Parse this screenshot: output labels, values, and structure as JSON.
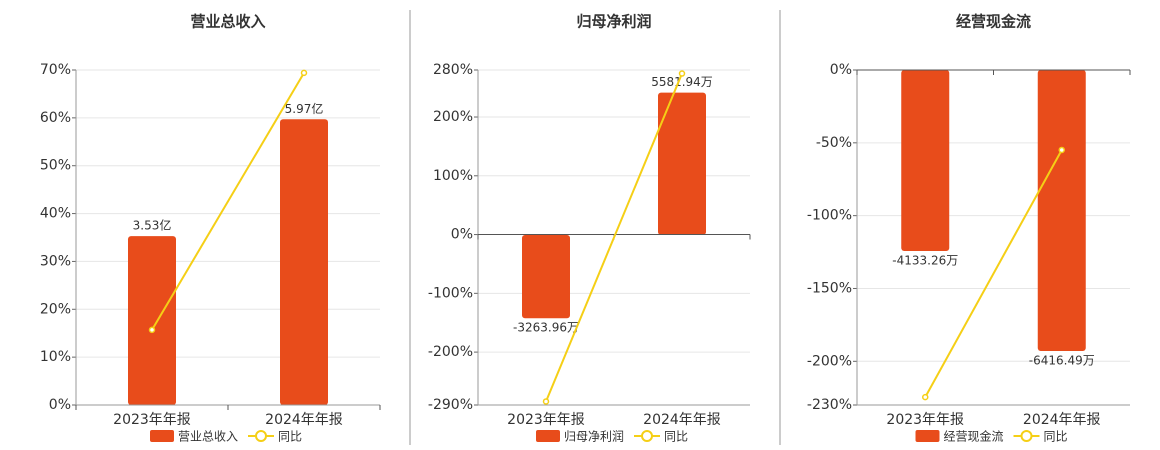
{
  "chart_data": [
    {
      "type": "bar_line",
      "title": "营业总收入",
      "categories": [
        "2023年年报",
        "2024年年报"
      ],
      "series": [
        {
          "name": "营业总收入",
          "color": "#e84c1b",
          "values": [
            3.53,
            5.97
          ],
          "value_labels": [
            "3.53亿",
            "5.97亿"
          ],
          "axis": "y2"
        },
        {
          "name": "同比",
          "color": "#f5cf16",
          "values": [
            15.7,
            69.4
          ]
        }
      ],
      "ylim": [
        0,
        70
      ],
      "yticks": [
        {
          "value": 0,
          "label": "0%"
        },
        {
          "value": 10,
          "label": "10%"
        },
        {
          "value": 20,
          "label": "20%"
        },
        {
          "value": 30,
          "label": "30%"
        },
        {
          "value": 40,
          "label": "40%"
        },
        {
          "value": 50,
          "label": "50%"
        },
        {
          "value": 60,
          "label": "60%"
        },
        {
          "value": 70,
          "label": "70%"
        }
      ],
      "y2lim": [
        0,
        7
      ],
      "grid": true
    },
    {
      "type": "bar_line",
      "title": "归母净利润",
      "categories": [
        "2023年年报",
        "2024年年报"
      ],
      "series": [
        {
          "name": "归母净利润",
          "color": "#e84c1b",
          "values": [
            -3263.96,
            5581.94
          ],
          "value_labels": [
            "-3263.96万",
            "5581.94万"
          ],
          "axis": "y2"
        },
        {
          "name": "同比",
          "color": "#f5cf16",
          "values": [
            -284,
            274
          ]
        }
      ],
      "ylim": [
        -290,
        280
      ],
      "yticks": [
        {
          "value": -290,
          "label": "-290%"
        },
        {
          "value": -200,
          "label": "-200%"
        },
        {
          "value": -100,
          "label": "-100%"
        },
        {
          "value": 0,
          "label": "0%"
        },
        {
          "value": 100,
          "label": "100%"
        },
        {
          "value": 200,
          "label": "200%"
        },
        {
          "value": 280,
          "label": "280%"
        }
      ],
      "y2lim": [
        -6667,
        6470
      ],
      "grid": true
    },
    {
      "type": "bar_line",
      "title": "经营现金流",
      "categories": [
        "2023年年报",
        "2024年年报"
      ],
      "series": [
        {
          "name": "经营现金流",
          "color": "#e84c1b",
          "values": [
            -4133.26,
            -6416.49
          ],
          "value_labels": [
            "-4133.26万",
            "-6416.49万"
          ],
          "axis": "y2"
        },
        {
          "name": "同比",
          "color": "#f5cf16",
          "values": [
            -224.6,
            -54.9
          ]
        }
      ],
      "ylim": [
        -230,
        0
      ],
      "yticks": [
        {
          "value": -230,
          "label": "-230%"
        },
        {
          "value": -200,
          "label": "-200%"
        },
        {
          "value": -150,
          "label": "-150%"
        },
        {
          "value": -100,
          "label": "-100%"
        },
        {
          "value": -50,
          "label": "-50%"
        },
        {
          "value": 0,
          "label": "0%"
        }
      ],
      "y2lim": [
        -7650,
        0
      ],
      "grid": true
    }
  ]
}
